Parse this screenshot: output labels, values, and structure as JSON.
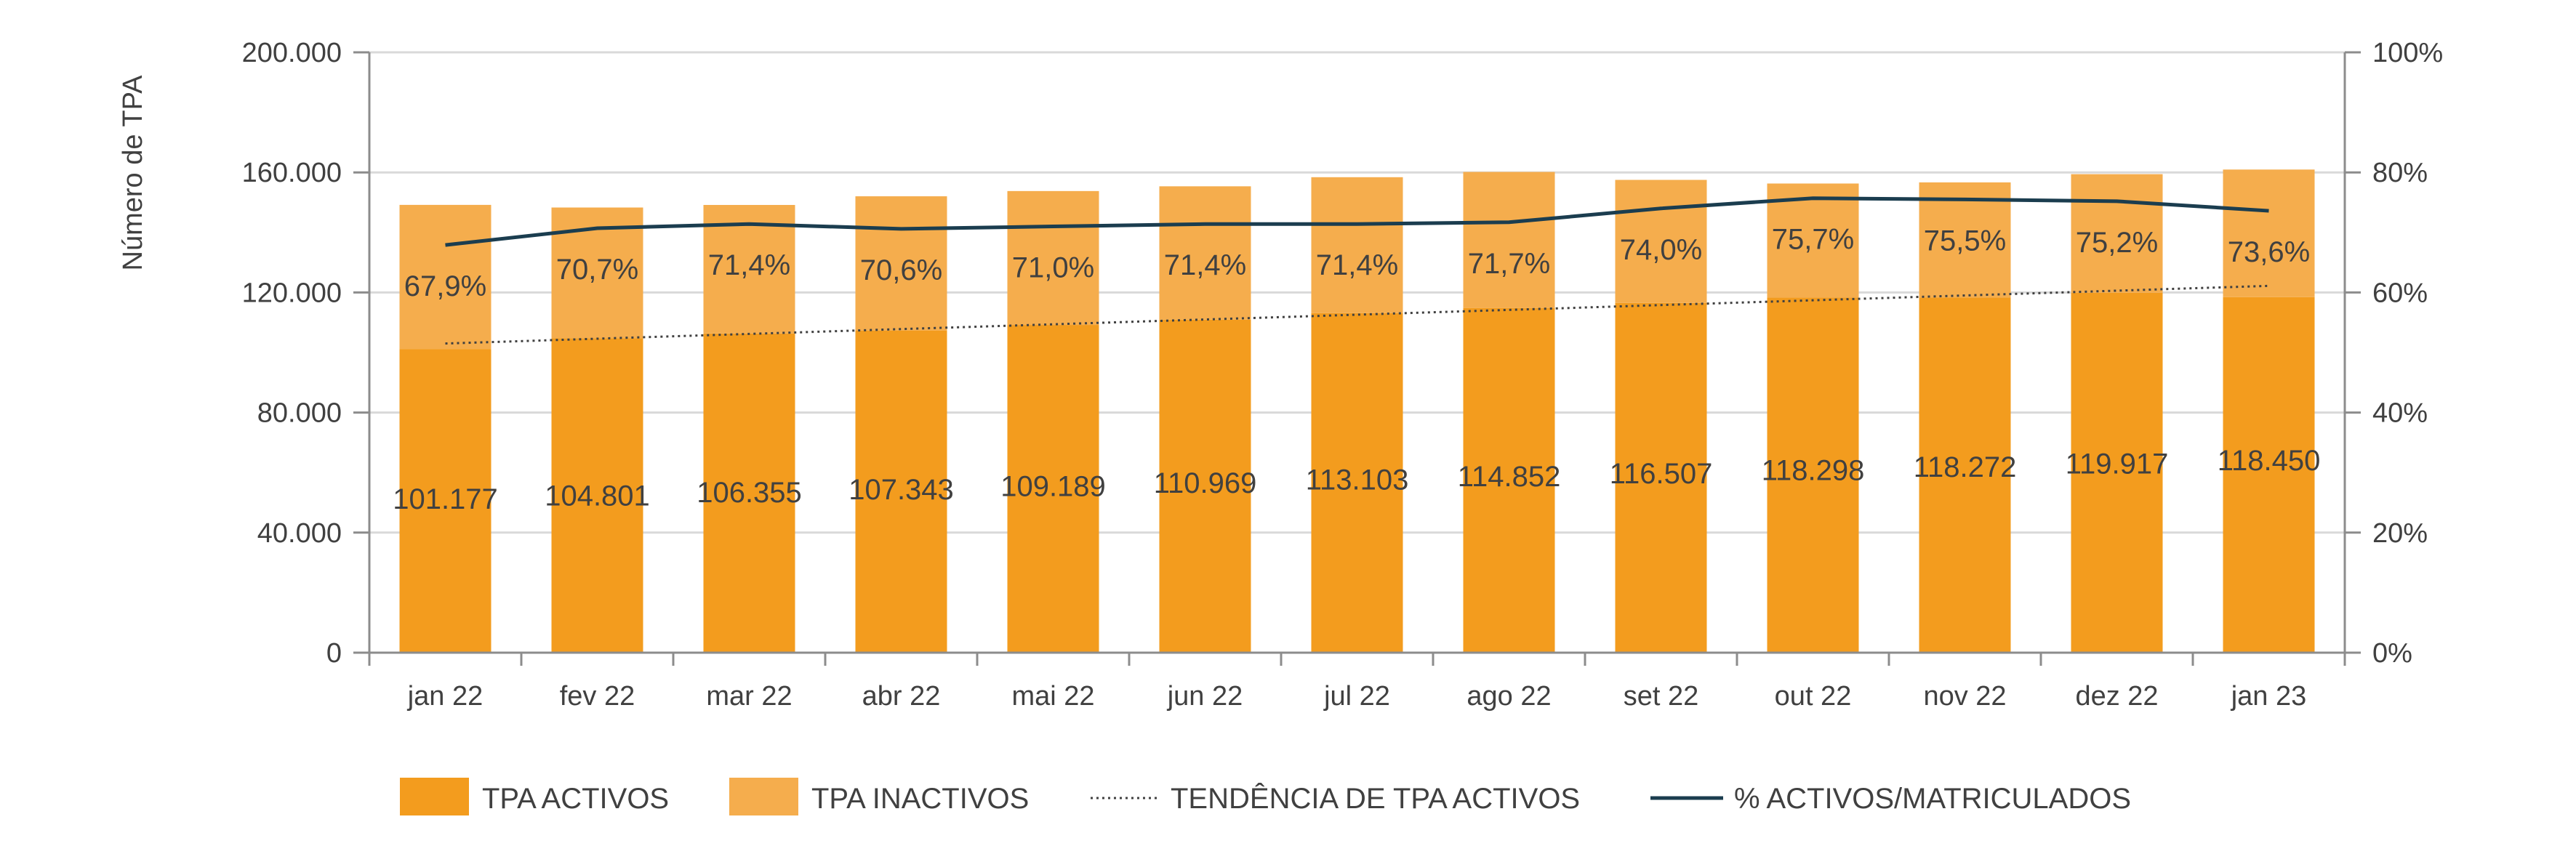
{
  "chart_data": {
    "type": "bar",
    "stacked": true,
    "ylabel": "Número de TPA",
    "ylim": [
      0,
      200000
    ],
    "y2lim": [
      0,
      100
    ],
    "grid": true,
    "legend_position": "bottom",
    "categories": [
      "jan 22",
      "fev 22",
      "mar 22",
      "abr 22",
      "mai 22",
      "jun 22",
      "jul 22",
      "ago 22",
      "set 22",
      "out 22",
      "nov 22",
      "dez 22",
      "jan 23"
    ],
    "y_ticks": [
      "0",
      "40.000",
      "80.000",
      "120.000",
      "160.000",
      "200.000"
    ],
    "y_tick_values": [
      0,
      40000,
      80000,
      120000,
      160000,
      200000
    ],
    "y2_ticks": [
      "0%",
      "20%",
      "40%",
      "60%",
      "80%",
      "100%"
    ],
    "y2_tick_values": [
      0,
      20,
      40,
      60,
      80,
      100
    ],
    "series": [
      {
        "name": "TPA ACTIVOS",
        "kind": "bar",
        "color": "#f39c1e",
        "values": [
          101177,
          104801,
          106355,
          107343,
          109189,
          110969,
          113103,
          114852,
          116507,
          118298,
          118272,
          119917,
          118450
        ],
        "labels": [
          "101.177",
          "104.801",
          "106.355",
          "107.343",
          "109.189",
          "110.969",
          "113.103",
          "114.852",
          "116.507",
          "118.298",
          "118.272",
          "119.917",
          "118.450"
        ]
      },
      {
        "name": "TPA INACTIVOS",
        "kind": "bar",
        "color": "#f5ad4d",
        "values": [
          48000,
          43500,
          42800,
          44700,
          44600,
          44400,
          45300,
          45300,
          41000,
          38000,
          38400,
          39500,
          42500
        ]
      },
      {
        "name": "TENDÊNCIA DE TPA ACTIVOS",
        "kind": "trend",
        "color": "#404040",
        "values": [
          103000,
          104600,
          106200,
          107800,
          109400,
          111000,
          112600,
          114200,
          115800,
          117400,
          119000,
          120600,
          122200
        ]
      },
      {
        "name": "% ACTIVOS/MATRICULADOS",
        "kind": "line",
        "axis": "right",
        "color": "#1b3d4f",
        "values": [
          67.9,
          70.7,
          71.4,
          70.6,
          71.0,
          71.4,
          71.4,
          71.7,
          74.0,
          75.7,
          75.5,
          75.2,
          73.6
        ],
        "labels": [
          "67,9%",
          "70,7%",
          "71,4%",
          "70,6%",
          "71,0%",
          "71,4%",
          "71,4%",
          "71,7%",
          "74,0%",
          "75,7%",
          "75,5%",
          "75,2%",
          "73,6%"
        ]
      }
    ],
    "axis_color": "#8c8c8c",
    "grid_color": "#d9d9d9"
  }
}
